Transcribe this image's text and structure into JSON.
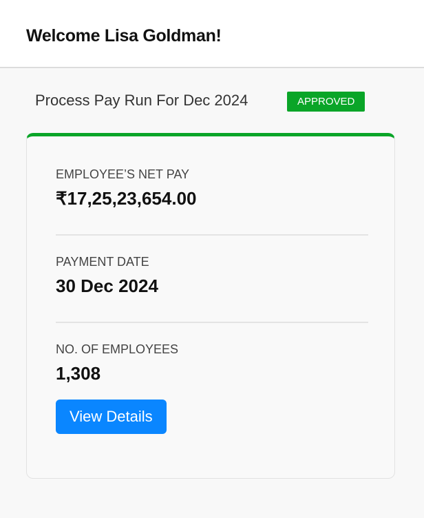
{
  "header": {
    "title": "Welcome Lisa Goldman!"
  },
  "payrun": {
    "title": "Process Pay Run For Dec 2024",
    "status": "APPROVED",
    "status_color": "#0aa528"
  },
  "card": {
    "net_pay_label": "EMPLOYEE’S NET PAY",
    "net_pay_value": "₹17,25,23,654.00",
    "payment_date_label": "PAYMENT DATE",
    "payment_date_value": "30 Dec 2024",
    "employees_label": "NO. OF EMPLOYEES",
    "employees_value": "1,308",
    "view_details_label": "View Details"
  }
}
